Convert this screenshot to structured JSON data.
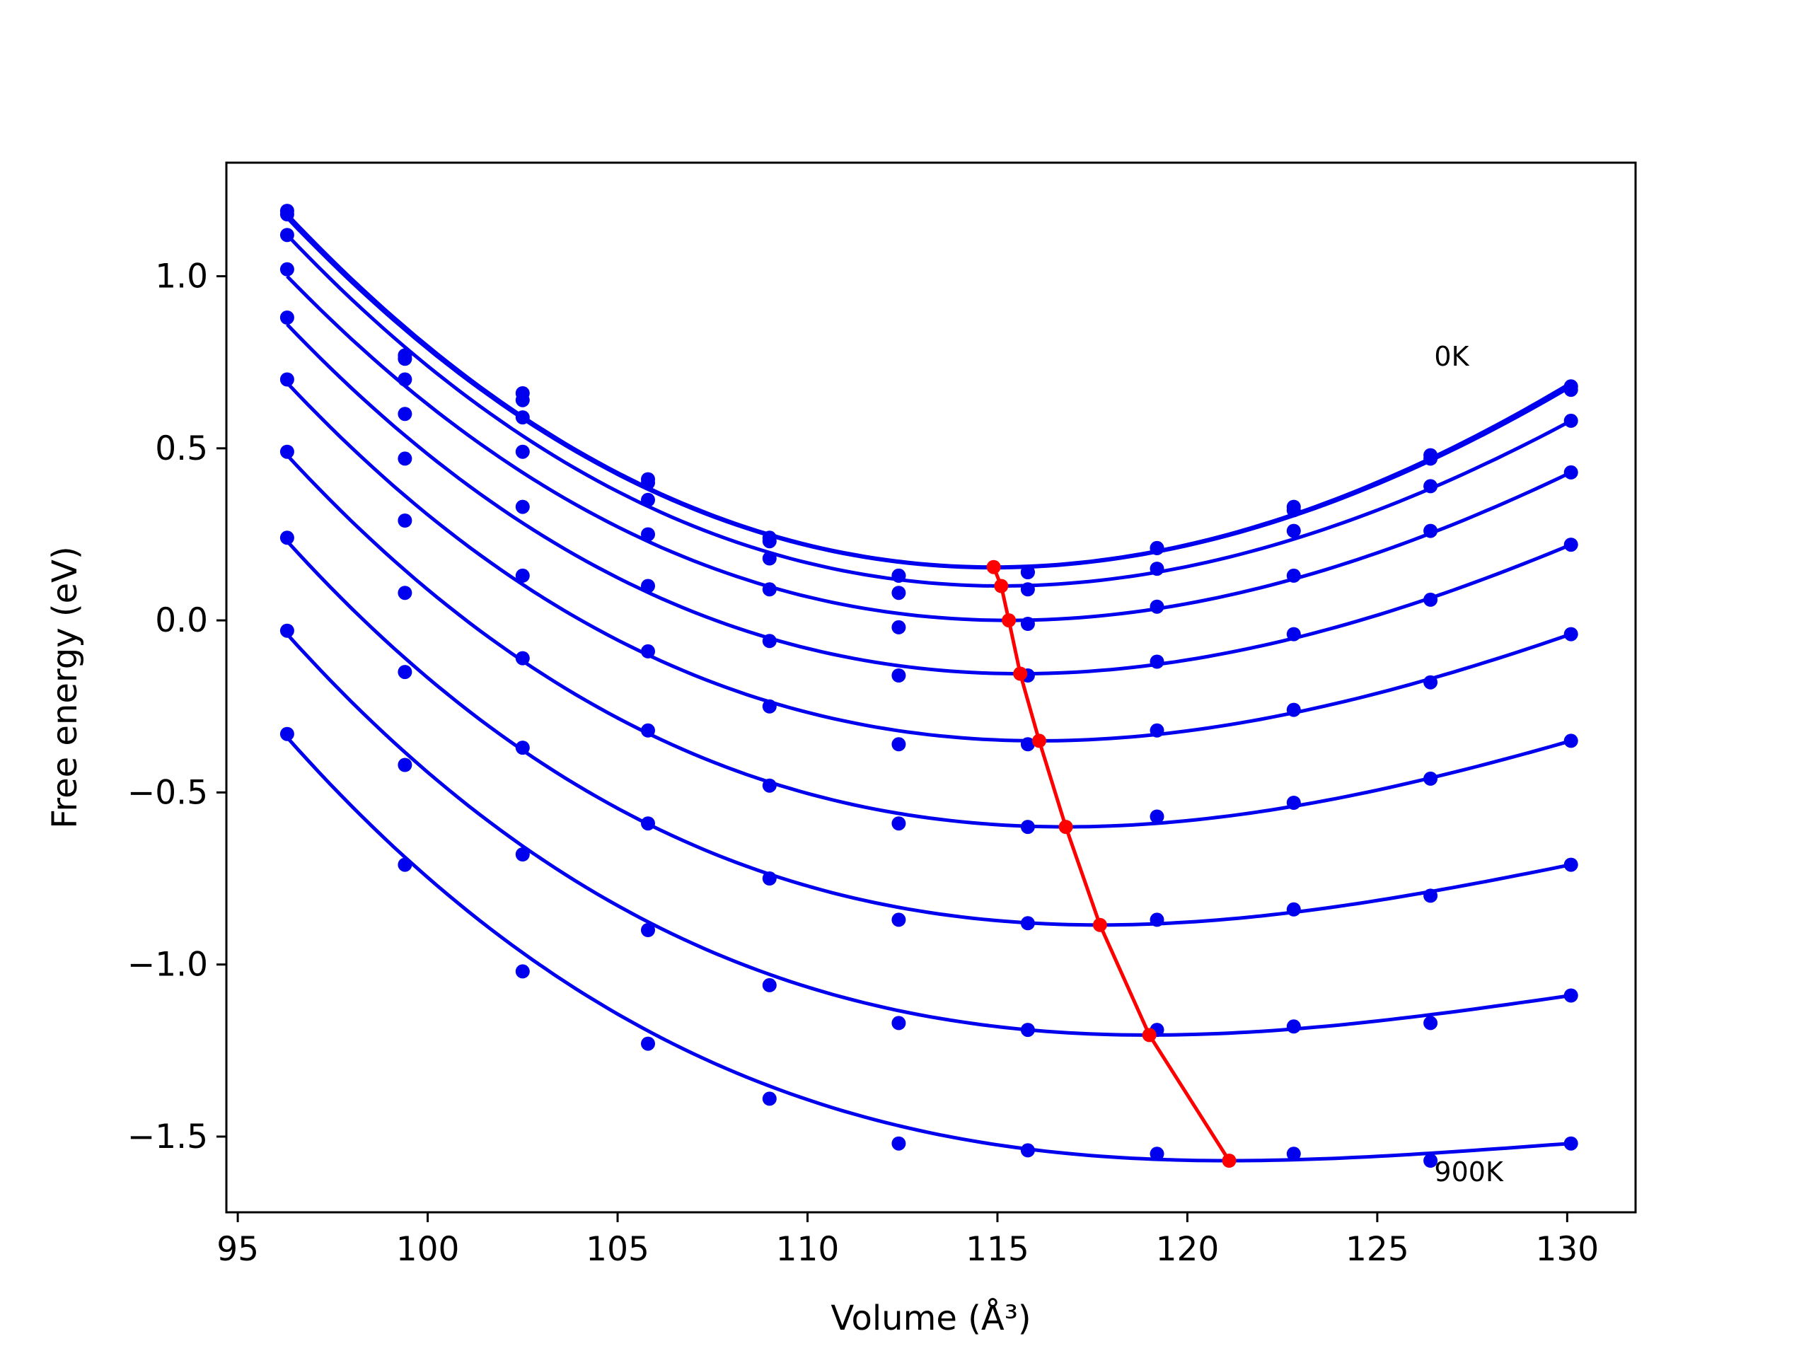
{
  "colors": {
    "isotherms": "#0000ee",
    "minimum_path": "#ff0000",
    "background": "#ffffff",
    "axes": "#000000"
  },
  "chart_data": {
    "type": "scatter",
    "xlabel": "Volume (Å³)",
    "ylabel": "Free energy (eV)",
    "xlim": [
      94.7,
      131.8
    ],
    "ylim": [
      -1.72,
      1.33
    ],
    "xticks": [
      "95",
      "100",
      "105",
      "110",
      "115",
      "120",
      "125",
      "130"
    ],
    "yticks": [
      "1.0",
      "0.5",
      "0.0",
      "−0.5",
      "−1.0",
      "−1.5"
    ],
    "xtick_values": [
      95,
      100,
      105,
      110,
      115,
      120,
      125,
      130
    ],
    "ytick_values": [
      1.0,
      0.5,
      0.0,
      -0.5,
      -1.0,
      -1.5
    ],
    "grid": false,
    "annotations": [
      {
        "text": "0K",
        "x": 126.5,
        "y": 0.74
      },
      {
        "text": "900K",
        "x": 126.5,
        "y": -1.63
      }
    ],
    "volumes": [
      96.3,
      99.4,
      102.5,
      105.8,
      109.0,
      112.4,
      115.8,
      119.2,
      122.8,
      126.4,
      130.1
    ],
    "isotherms": [
      {
        "points": [
          1.19,
          0.77,
          0.66,
          0.41,
          0.24,
          0.13,
          0.14,
          0.21,
          0.33,
          0.48,
          0.68
        ],
        "fit_min": {
          "x": 114.9,
          "y": 0.155
        },
        "fit_y_ends": [
          1.18,
          0.69
        ]
      },
      {
        "points": [
          1.18,
          0.76,
          0.64,
          0.4,
          0.23,
          0.13,
          0.14,
          0.21,
          0.32,
          0.47,
          0.67
        ],
        "fit_min": {
          "x": 114.9,
          "y": 0.153
        },
        "fit_y_ends": [
          1.17,
          0.68
        ]
      },
      {
        "points": [
          1.12,
          0.7,
          0.59,
          0.35,
          0.18,
          0.08,
          0.09,
          0.15,
          0.26,
          0.39,
          0.58
        ],
        "fit_min": {
          "x": 115.1,
          "y": 0.1
        },
        "fit_y_ends": [
          1.12,
          0.58
        ]
      },
      {
        "points": [
          1.02,
          0.6,
          0.49,
          0.25,
          0.09,
          -0.02,
          -0.01,
          0.04,
          0.13,
          0.26,
          0.43
        ],
        "fit_min": {
          "x": 115.3,
          "y": 0.0
        },
        "fit_y_ends": [
          1.0,
          0.43
        ]
      },
      {
        "points": [
          0.88,
          0.47,
          0.33,
          0.1,
          -0.06,
          -0.16,
          -0.16,
          -0.12,
          -0.04,
          0.06,
          0.22
        ],
        "fit_min": {
          "x": 115.6,
          "y": -0.155
        },
        "fit_y_ends": [
          0.86,
          0.22
        ]
      },
      {
        "points": [
          0.7,
          0.29,
          0.13,
          -0.09,
          -0.25,
          -0.36,
          -0.36,
          -0.32,
          -0.26,
          -0.18,
          -0.04
        ],
        "fit_min": {
          "x": 116.1,
          "y": -0.35
        },
        "fit_y_ends": [
          0.69,
          -0.04
        ]
      },
      {
        "points": [
          0.49,
          0.08,
          -0.11,
          -0.32,
          -0.48,
          -0.59,
          -0.6,
          -0.57,
          -0.53,
          -0.46,
          -0.35
        ],
        "fit_min": {
          "x": 116.8,
          "y": -0.6
        },
        "fit_y_ends": [
          0.48,
          -0.35
        ]
      },
      {
        "points": [
          0.24,
          -0.15,
          -0.37,
          -0.59,
          -0.75,
          -0.87,
          -0.88,
          -0.87,
          -0.84,
          -0.8,
          -0.71
        ],
        "fit_min": {
          "x": 117.7,
          "y": -0.885
        },
        "fit_y_ends": [
          0.23,
          -0.71
        ]
      },
      {
        "points": [
          -0.03,
          -0.42,
          -0.68,
          -0.9,
          -1.06,
          -1.17,
          -1.19,
          -1.19,
          -1.18,
          -1.17,
          -1.09
        ],
        "fit_min": {
          "x": 119.0,
          "y": -1.205
        },
        "fit_y_ends": [
          -0.04,
          -1.09
        ]
      },
      {
        "points": [
          -0.33,
          -0.71,
          -1.02,
          -1.23,
          -1.39,
          -1.52,
          -1.54,
          -1.55,
          -1.55,
          -1.57,
          -1.52
        ],
        "fit_min": {
          "x": 121.1,
          "y": -1.57
        },
        "fit_y_ends": [
          -0.34,
          -1.52
        ]
      }
    ],
    "minimum_path": {
      "x": [
        114.9,
        115.1,
        115.3,
        115.6,
        116.1,
        116.8,
        117.7,
        119.0,
        121.1
      ],
      "y": [
        0.155,
        0.1,
        0.0,
        -0.155,
        -0.35,
        -0.6,
        -0.885,
        -1.205,
        -1.57
      ]
    }
  }
}
